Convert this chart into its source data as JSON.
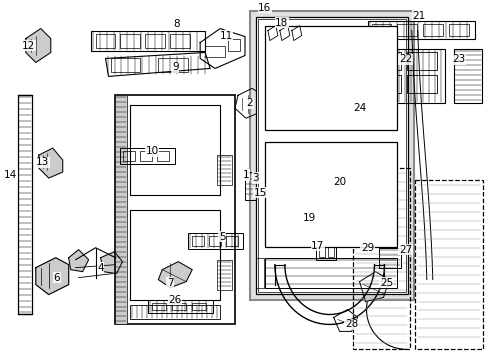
{
  "bg": "#ffffff",
  "lc": "#000000",
  "gray": "#aaaaaa",
  "ltgray": "#cccccc",
  "fig_w": 4.89,
  "fig_h": 3.6,
  "dpi": 100
}
